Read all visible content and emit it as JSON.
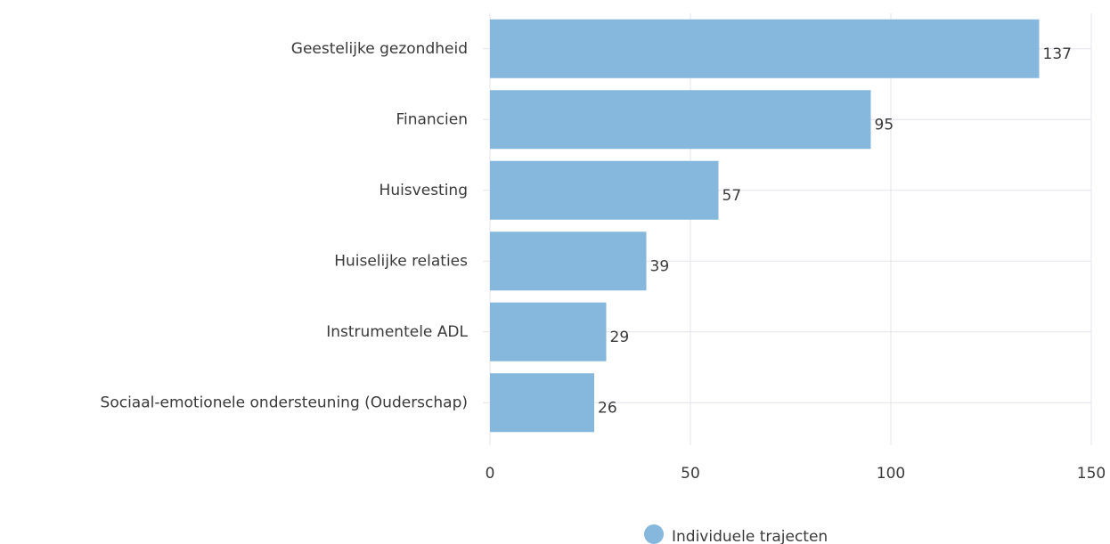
{
  "chart_data": {
    "type": "bar",
    "orientation": "horizontal",
    "categories": [
      "Geestelijke gezondheid",
      "Financien",
      "Huisvesting",
      "Huiselijke relaties",
      "Instrumentele ADL",
      "Sociaal-emotionele ondersteuning (Ouderschap)"
    ],
    "series": [
      {
        "name": "Individuele trajecten",
        "color": "#85b8dc",
        "values": [
          137,
          95,
          57,
          39,
          29,
          26
        ]
      }
    ],
    "xlim": [
      0,
      150
    ],
    "xticks": [
      0,
      50,
      100,
      150
    ],
    "grid": true,
    "legend": "bottom"
  }
}
